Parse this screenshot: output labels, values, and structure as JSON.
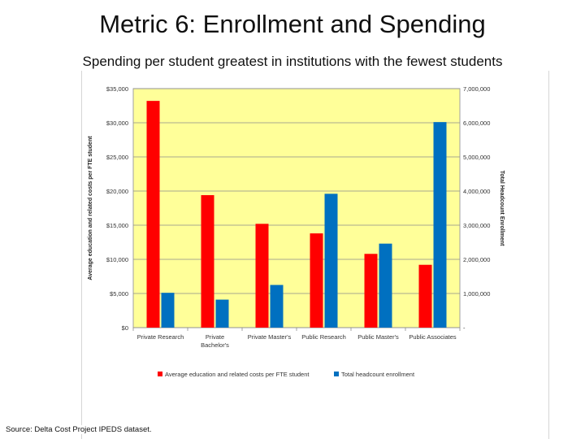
{
  "slide": {
    "title": "Metric 6: Enrollment and Spending",
    "subtitle": "Spending per student greatest in institutions with the fewest students",
    "source": "Source: Delta Cost Project IPEDS dataset."
  },
  "chart_data": {
    "type": "bar",
    "categories": [
      "Private Research",
      "Private Bachelor's",
      "Private Master's",
      "Public Research",
      "Public Master's",
      "Public Associates"
    ],
    "category_lines": [
      [
        "Private Research"
      ],
      [
        "Private",
        "Bachelor's"
      ],
      [
        "Private Master's"
      ],
      [
        "Public Research"
      ],
      [
        "Public Master's"
      ],
      [
        "Public Associates"
      ]
    ],
    "series": [
      {
        "name": "Average education and related costs per FTE student",
        "axis": "left",
        "color": "#ff0000",
        "values": [
          33200,
          19400,
          15200,
          13800,
          10800,
          9200
        ]
      },
      {
        "name": "Total headcount enrollment",
        "axis": "right",
        "color": "#0070c0",
        "values": [
          1020000,
          820000,
          1250000,
          3920000,
          2460000,
          6020000
        ]
      }
    ],
    "y_left": {
      "label": "Average education and related costs per FTE student",
      "range": [
        0,
        35000
      ],
      "ticks": [
        "$0",
        "$5,000",
        "$10,000",
        "$15,000",
        "$20,000",
        "$25,000",
        "$30,000",
        "$35,000"
      ]
    },
    "y_right": {
      "label": "Total Headcount Enrollment",
      "range": [
        0,
        7000000
      ],
      "ticks": [
        "-",
        "1,000,000",
        "2,000,000",
        "3,000,000",
        "4,000,000",
        "5,000,000",
        "6,000,000",
        "7,000,000"
      ]
    },
    "plot_background": "#ffff99",
    "grid": true,
    "legend_position": "bottom"
  }
}
